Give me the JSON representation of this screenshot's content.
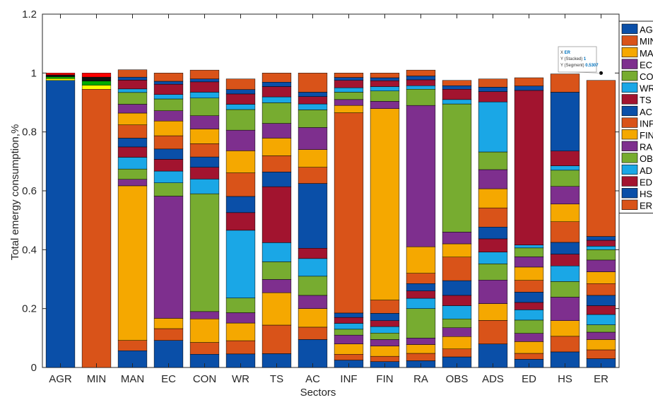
{
  "chart_data": {
    "type": "bar",
    "stacked": true,
    "xlabel": "Sectors",
    "ylabel": "Total emergy consumption,%",
    "ylim": [
      0,
      1.2
    ],
    "yticks": [
      "0",
      "0.2",
      "0.4",
      "0.6",
      "0.8",
      "1",
      "1.2"
    ],
    "grid": false,
    "legend_position": "right",
    "categories": [
      "AGR",
      "MIN",
      "MAN",
      "EC",
      "CON",
      "WR",
      "TS",
      "AC",
      "INF",
      "FIN",
      "RA",
      "OBS",
      "ADS",
      "ED",
      "HS",
      "ER"
    ],
    "series": [
      {
        "name": "AGR",
        "color": "#0a4fa8",
        "values": [
          0.975,
          0.0,
          0.057,
          0.092,
          0.045,
          0.046,
          0.047,
          0.095,
          0.025,
          0.02,
          0.023,
          0.036,
          0.08,
          0.028,
          0.053,
          0.03
        ]
      },
      {
        "name": "MIN",
        "color": "#d95319",
        "values": [
          0.0,
          0.945,
          0.035,
          0.04,
          0.04,
          0.045,
          0.097,
          0.042,
          0.02,
          0.018,
          0.025,
          0.027,
          0.08,
          0.02,
          0.053,
          0.03
        ]
      },
      {
        "name": "MAN",
        "color": "#f5a800",
        "values": [
          0.0,
          0.0,
          0.525,
          0.035,
          0.08,
          0.06,
          0.11,
          0.063,
          0.035,
          0.035,
          0.03,
          0.042,
          0.057,
          0.04,
          0.053,
          0.035
        ]
      },
      {
        "name": "EC",
        "color": "#7e2f8e",
        "values": [
          0.0,
          0.0,
          0.022,
          0.415,
          0.025,
          0.035,
          0.045,
          0.045,
          0.03,
          0.022,
          0.022,
          0.03,
          0.08,
          0.028,
          0.08,
          0.025
        ]
      },
      {
        "name": "CON",
        "color": "#77ac30",
        "values": [
          0.0,
          0.0,
          0.035,
          0.045,
          0.4,
          0.05,
          0.06,
          0.065,
          0.02,
          0.022,
          0.1,
          0.03,
          0.055,
          0.045,
          0.053,
          0.025
        ]
      },
      {
        "name": "WR",
        "color": "#1aa7e6",
        "values": [
          0.0,
          0.0,
          0.04,
          0.04,
          0.05,
          0.23,
          0.065,
          0.06,
          0.02,
          0.022,
          0.035,
          0.045,
          0.04,
          0.035,
          0.053,
          0.035
        ]
      },
      {
        "name": "TS",
        "color": "#a2142f",
        "values": [
          0.0,
          0.0,
          0.035,
          0.04,
          0.04,
          0.06,
          0.19,
          0.035,
          0.02,
          0.02,
          0.025,
          0.035,
          0.045,
          0.025,
          0.04,
          0.03
        ]
      },
      {
        "name": "AC",
        "color": "#0a4fa8",
        "values": [
          0.0,
          0.0,
          0.03,
          0.035,
          0.035,
          0.055,
          0.05,
          0.22,
          0.015,
          0.025,
          0.025,
          0.05,
          0.04,
          0.035,
          0.04,
          0.035
        ]
      },
      {
        "name": "INF",
        "color": "#d95319",
        "values": [
          0.0,
          0.0,
          0.045,
          0.045,
          0.045,
          0.08,
          0.055,
          0.055,
          0.68,
          0.045,
          0.035,
          0.08,
          0.065,
          0.04,
          0.07,
          0.04
        ]
      },
      {
        "name": "FIN",
        "color": "#f5a800",
        "values": [
          0.0,
          0.0,
          0.04,
          0.05,
          0.05,
          0.075,
          0.06,
          0.06,
          0.025,
          0.65,
          0.09,
          0.045,
          0.065,
          0.045,
          0.06,
          0.04
        ]
      },
      {
        "name": "RA",
        "color": "#7e2f8e",
        "values": [
          0.0,
          0.0,
          0.03,
          0.035,
          0.045,
          0.07,
          0.05,
          0.075,
          0.02,
          0.025,
          0.48,
          0.04,
          0.065,
          0.035,
          0.06,
          0.04
        ]
      },
      {
        "name": "OBS",
        "color": "#77ac30",
        "values": [
          0.0,
          0.0,
          0.04,
          0.04,
          0.06,
          0.07,
          0.07,
          0.06,
          0.025,
          0.035,
          0.055,
          0.435,
          0.06,
          0.03,
          0.055,
          0.035
        ]
      },
      {
        "name": "ADS",
        "color": "#1aa7e6",
        "values": [
          0.0,
          0.0,
          0.012,
          0.015,
          0.02,
          0.018,
          0.02,
          0.02,
          0.015,
          0.015,
          0.012,
          0.015,
          0.17,
          0.01,
          0.015,
          0.012
        ]
      },
      {
        "name": "ED",
        "color": "#a2142f",
        "values": [
          0.0,
          0.0,
          0.03,
          0.035,
          0.035,
          0.035,
          0.035,
          0.025,
          0.025,
          0.02,
          0.02,
          0.035,
          0.035,
          0.525,
          0.05,
          0.02
        ]
      },
      {
        "name": "HS",
        "color": "#0a4fa8",
        "values": [
          0.0,
          0.0,
          0.01,
          0.01,
          0.01,
          0.015,
          0.015,
          0.015,
          0.01,
          0.01,
          0.013,
          0.012,
          0.015,
          0.015,
          0.2,
          0.013
        ]
      },
      {
        "name": "ER",
        "color": "#d95319",
        "values": [
          0.0,
          0.0,
          0.025,
          0.028,
          0.03,
          0.036,
          0.031,
          0.065,
          0.015,
          0.016,
          0.02,
          0.018,
          0.028,
          0.028,
          0.062,
          0.53
        ]
      }
    ],
    "extra_series_colors": [
      "#ffff00",
      "#00aa00",
      "#111111",
      "#ff0000"
    ],
    "annotation": {
      "category": "ER",
      "lines": [
        "X ER",
        "Y (Stacked) 1",
        "Y (Segment) 0.5307"
      ],
      "value_color": "#0072bd"
    }
  }
}
